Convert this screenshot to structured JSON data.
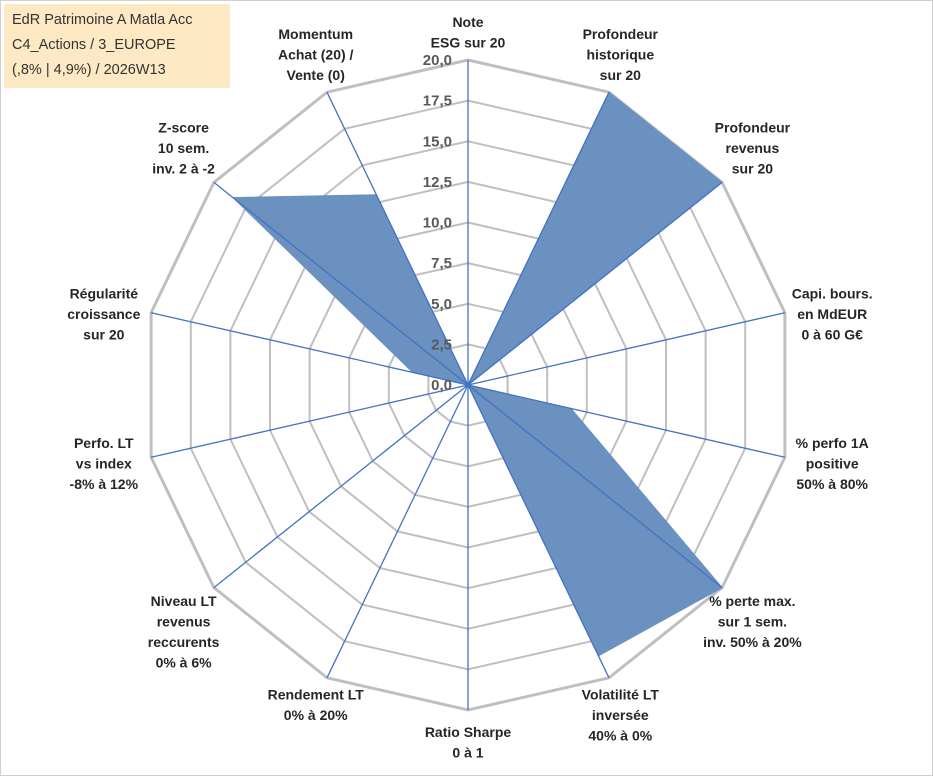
{
  "info_box": {
    "line1": "EdR Patrimoine A Matla Acc",
    "line2": "C4_Actions / 3_EUROPE",
    "line3": "(,8% | 4,9%) / 2026W13"
  },
  "colors": {
    "fill": "#6a91bf",
    "stroke": "#4472c4",
    "grid": "#bfbfbf",
    "tick_text": "#595959",
    "label_text": "#262626",
    "info_bg": "#fde9c4"
  },
  "chart_data": {
    "type": "radar",
    "rmax": 20,
    "ticks": [
      "0,0",
      "2,5",
      "5,0",
      "7,5",
      "10,0",
      "12,5",
      "15,0",
      "17,5",
      "20,0"
    ],
    "tick_values": [
      0,
      2.5,
      5,
      7.5,
      10,
      12.5,
      15,
      17.5,
      20
    ],
    "axes": [
      {
        "label": [
          "Note",
          "ESG sur 20"
        ],
        "value": 0
      },
      {
        "label": [
          "Profondeur",
          "historique",
          "sur 20"
        ],
        "value": 20
      },
      {
        "label": [
          "Profondeur",
          "revenus",
          "sur 20"
        ],
        "value": 20
      },
      {
        "label": [
          "Capi. bours.",
          "en MdEUR",
          "0 à 60 G€"
        ],
        "value": 0
      },
      {
        "label": [
          "% perfo 1A",
          "positive",
          "50% à 80%"
        ],
        "value": 6.5
      },
      {
        "label": [
          "% perte max.",
          "sur 1 sem.",
          "inv. 50% à 20%"
        ],
        "value": 20
      },
      {
        "label": [
          "Volatilité LT",
          "inversée",
          "40% à 0%"
        ],
        "value": 18.5
      },
      {
        "label": [
          "Ratio Sharpe",
          "0 à 1"
        ],
        "value": 0
      },
      {
        "label": [
          "Rendement LT",
          "0% à 20%"
        ],
        "value": 0
      },
      {
        "label": [
          "Niveau LT",
          "revenus",
          "reccurents",
          "0% à 6%"
        ],
        "value": 0
      },
      {
        "label": [
          "Perfo. LT",
          "vs index",
          "-8% à 12%"
        ],
        "value": 0
      },
      {
        "label": [
          "Régularité",
          "croissance",
          "sur 20"
        ],
        "value": 3.5
      },
      {
        "label": [
          "Z-score",
          "10 sem.",
          "inv. 2 à -2"
        ],
        "value": 18.5
      },
      {
        "label": [
          "Momentum",
          "Achat (20) /",
          "Vente (0)"
        ],
        "value": 13
      }
    ]
  }
}
